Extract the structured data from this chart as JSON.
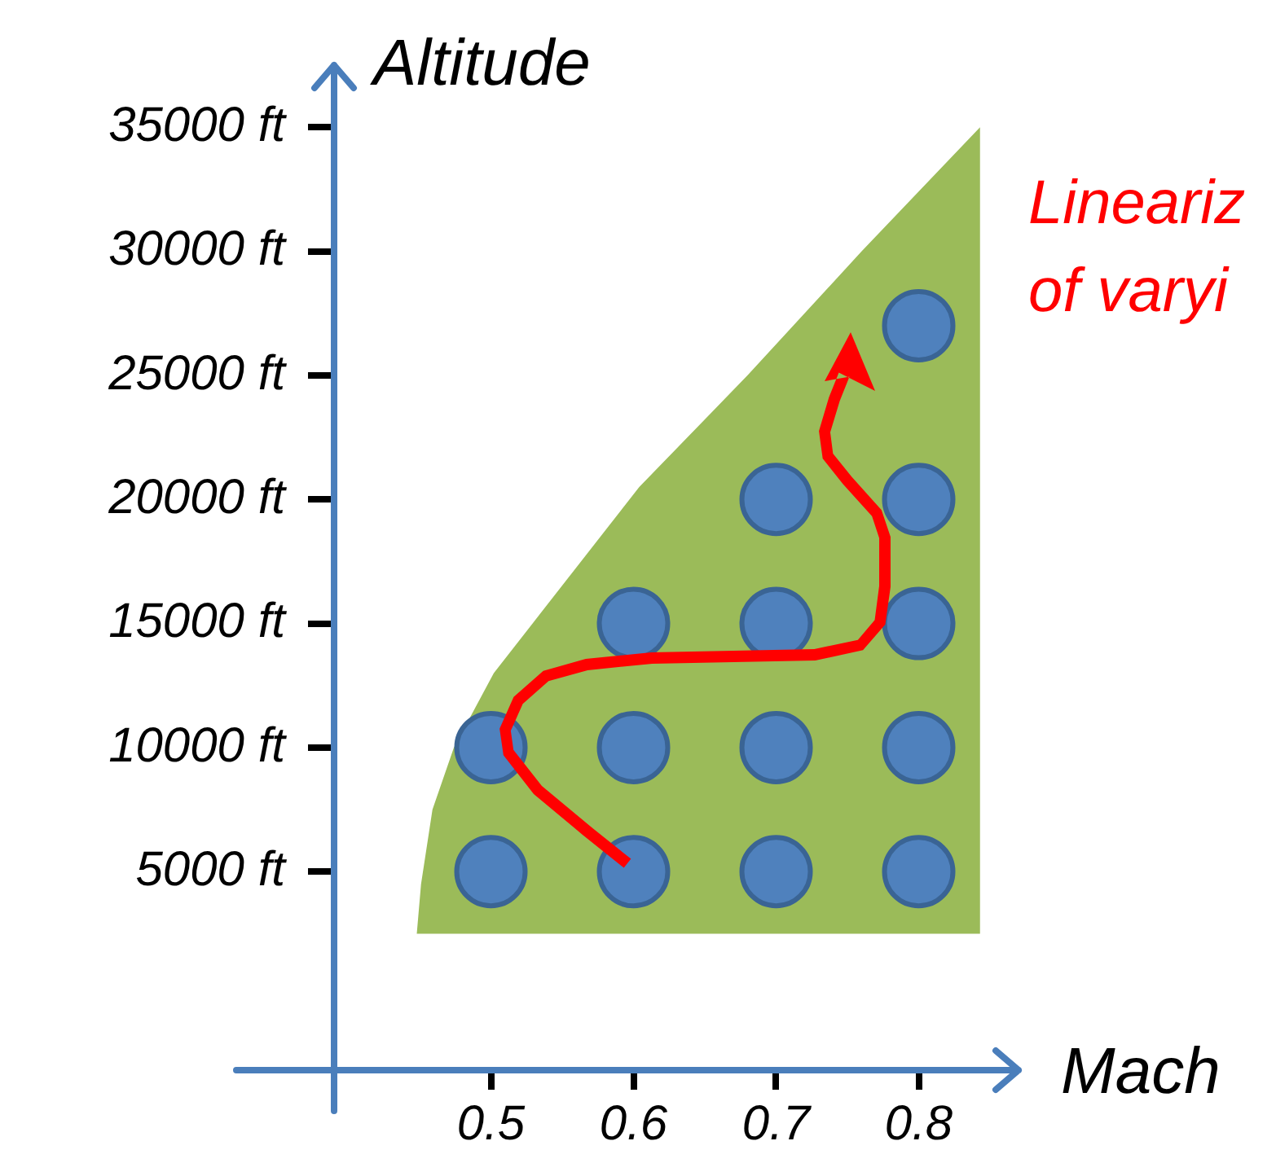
{
  "chart_data": {
    "type": "scatter",
    "xlabel": "Mach",
    "ylabel": "Altitude",
    "xlim": [
      0.39,
      0.87
    ],
    "xticks": [
      0.5,
      0.6,
      0.7,
      0.8
    ],
    "ylim": [
      -3000,
      37500
    ],
    "yticks": [
      {
        "value": 5000,
        "label": "5000 ft"
      },
      {
        "value": 10000,
        "label": "10000 ft"
      },
      {
        "value": 15000,
        "label": "15000 ft"
      },
      {
        "value": 20000,
        "label": "20000 ft"
      },
      {
        "value": 25000,
        "label": "25000 ft"
      },
      {
        "value": 30000,
        "label": "30000 ft"
      },
      {
        "value": 35000,
        "label": "35000 ft"
      }
    ],
    "series": [
      {
        "type": "area",
        "color": "#9bbb59",
        "x": [
          0.448,
          0.451,
          0.459,
          0.474,
          0.502,
          0.536,
          0.604,
          0.68,
          0.76,
          0.843,
          0.843
        ],
        "values": [
          2500,
          4500,
          7500,
          10000,
          13000,
          15500,
          20500,
          25000,
          30000,
          35000,
          2500
        ]
      },
      {
        "type": "scatter",
        "color": "#4f81bd",
        "marker": "circle",
        "x": [
          0.5,
          0.6,
          0.7,
          0.8,
          0.5,
          0.6,
          0.7,
          0.8,
          0.6,
          0.7,
          0.8,
          0.7,
          0.8,
          0.8
        ],
        "values": [
          5000,
          5000,
          5000,
          5000,
          10000,
          10000,
          10000,
          10000,
          15000,
          15000,
          15000,
          20000,
          20000,
          27000
        ]
      }
    ],
    "annotations": [
      "Lineariz",
      "of varyi"
    ]
  }
}
